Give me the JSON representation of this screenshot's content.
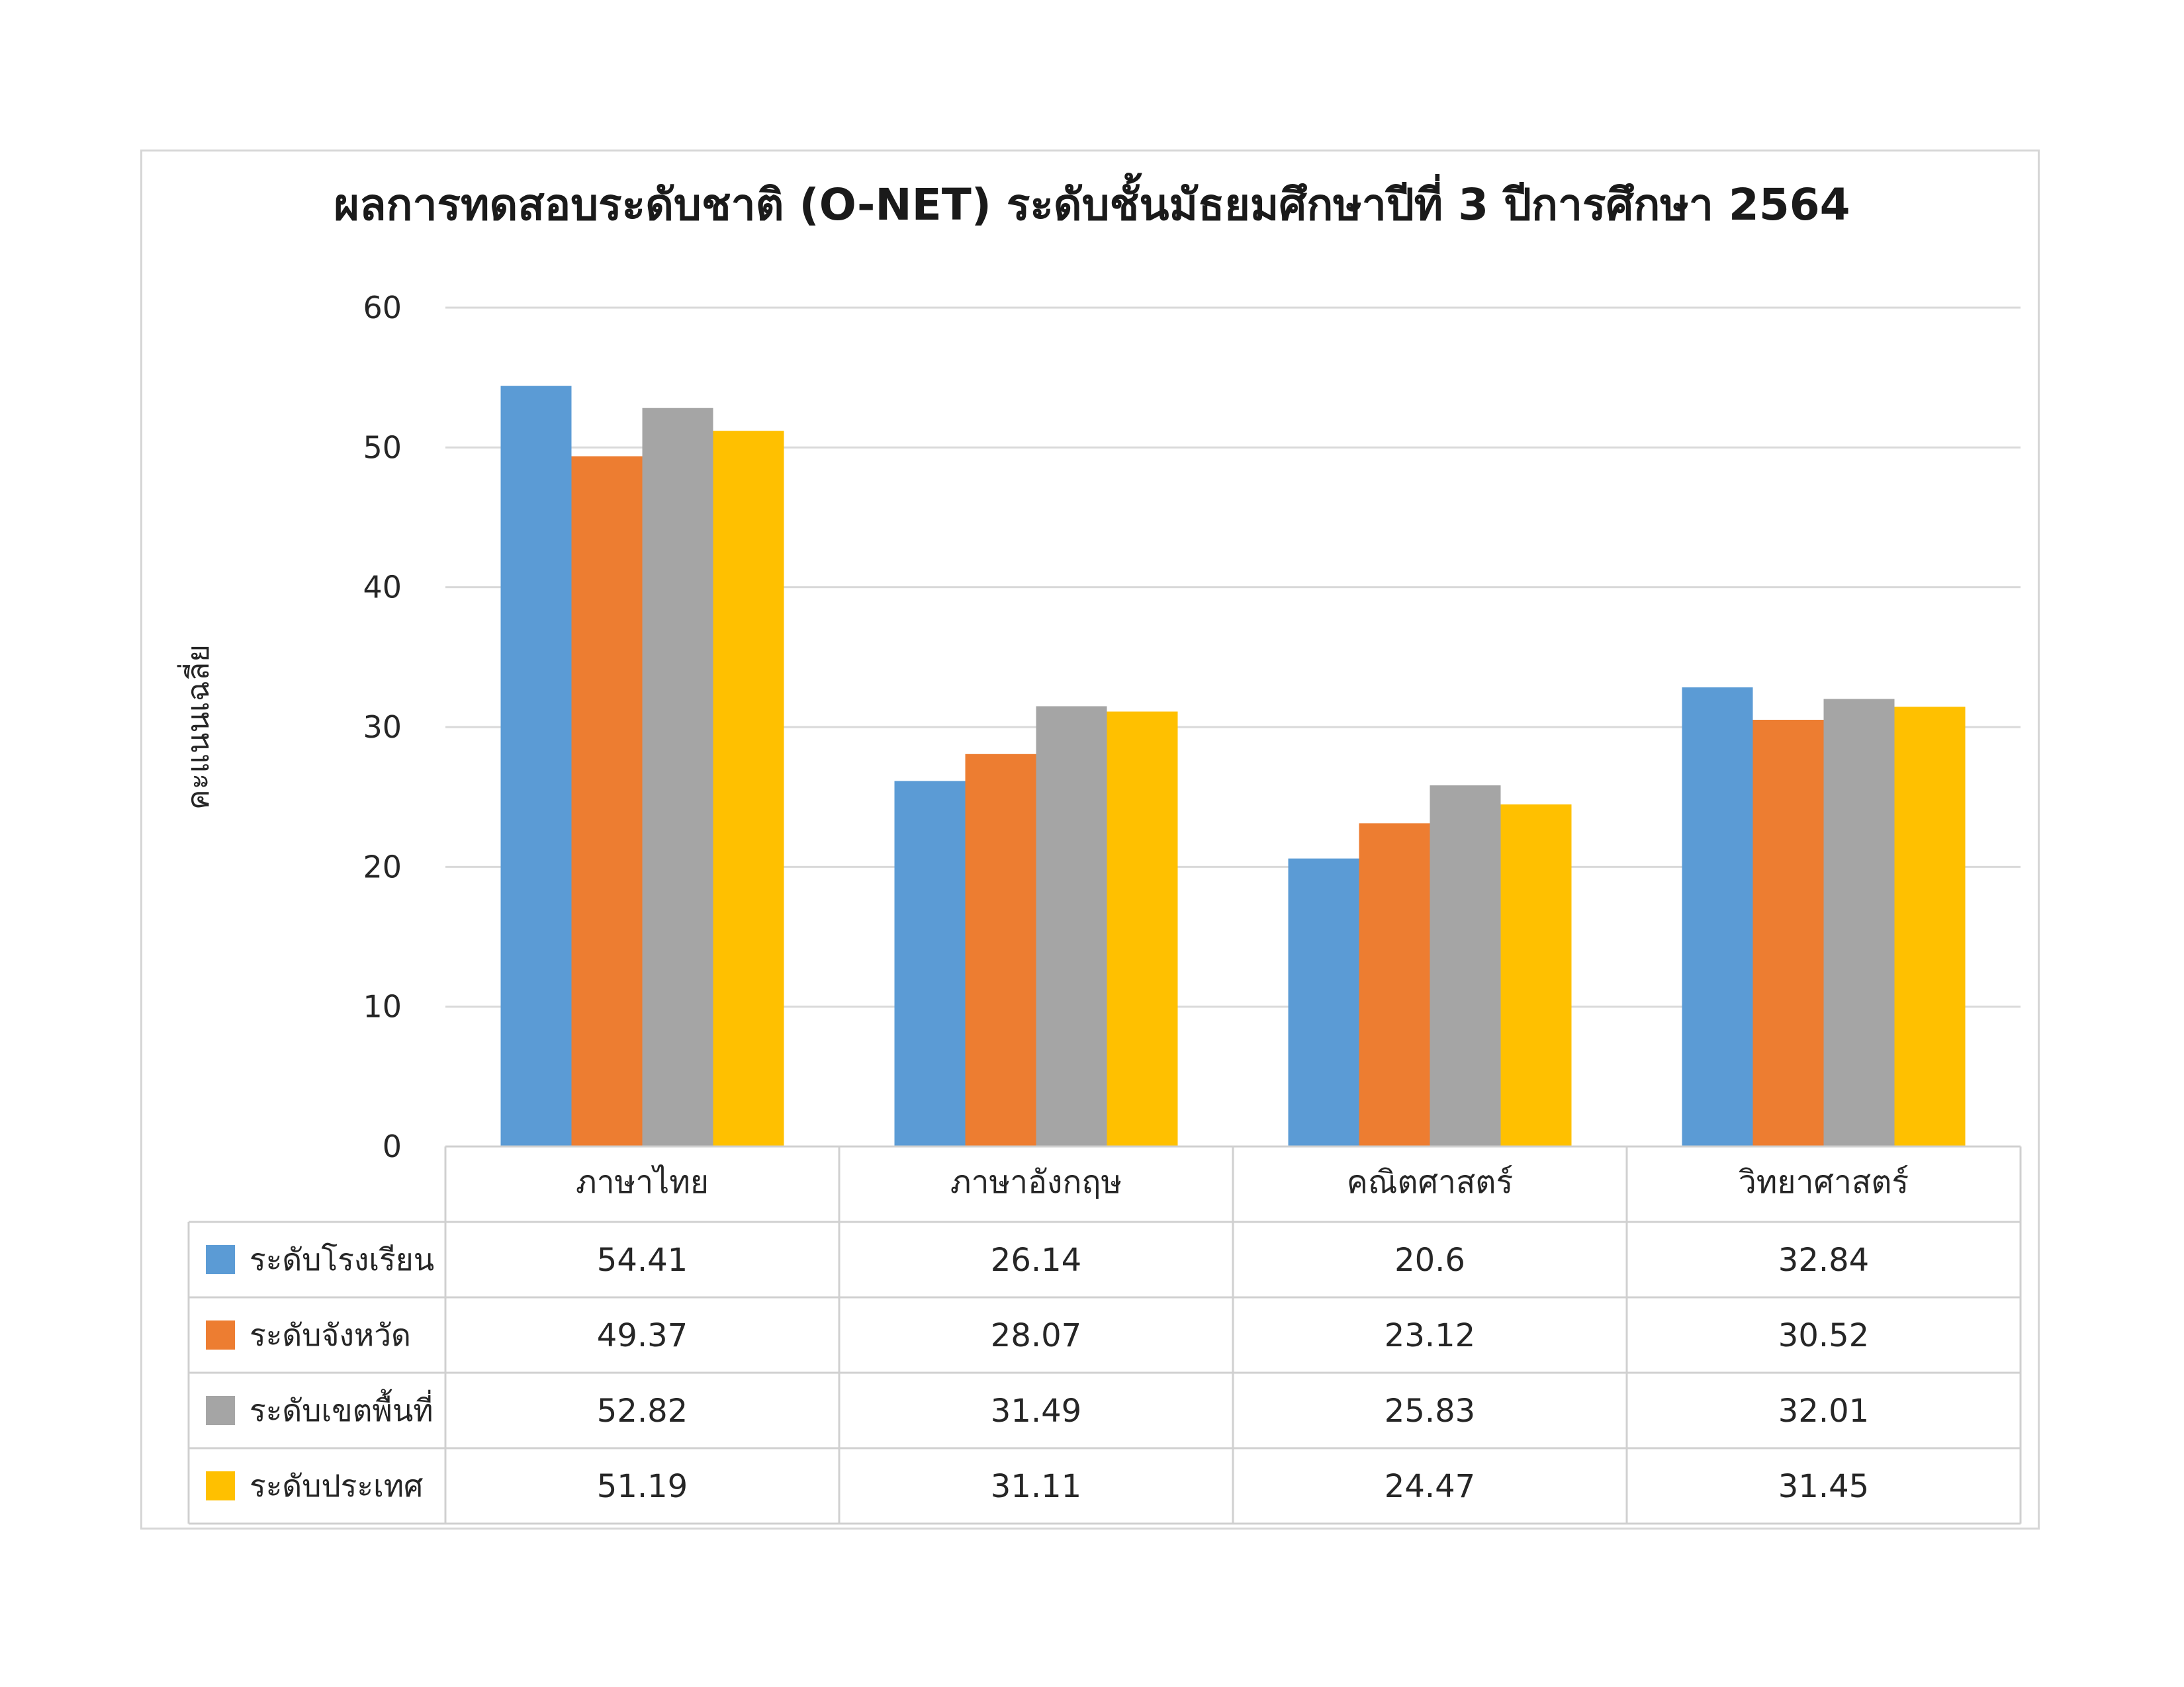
{
  "chart_data": {
    "type": "bar",
    "title": "ผลการทดสอบระดับชาติ (O-NET) ระดับชั้นมัธยมศึกษาปีที่ 3 ปีการศึกษา 2564",
    "xlabel": "",
    "ylabel": "คะแนนเฉลี่ย",
    "ylim": [
      0,
      60
    ],
    "yticks": [
      "0",
      "10",
      "20",
      "30",
      "40",
      "50",
      "60"
    ],
    "grid": true,
    "legend": "data-table-left",
    "categories": [
      "ภาษาไทย",
      "ภาษาอังกฤษ",
      "คณิตศาสตร์",
      "วิทยาศาสตร์"
    ],
    "series": [
      {
        "name": "ระดับโรงเรียน",
        "color": "#5b9bd5",
        "values": [
          54.41,
          26.14,
          20.6,
          32.84
        ],
        "labels": [
          "54.41",
          "26.14",
          "20.6",
          "32.84"
        ]
      },
      {
        "name": "ระดับจังหวัด",
        "color": "#ed7d31",
        "values": [
          49.37,
          28.07,
          23.12,
          30.52
        ],
        "labels": [
          "49.37",
          "28.07",
          "23.12",
          "30.52"
        ]
      },
      {
        "name": "ระดับเขตพื้นที่",
        "color": "#a5a5a5",
        "values": [
          52.82,
          31.49,
          25.83,
          32.01
        ],
        "labels": [
          "52.82",
          "31.49",
          "25.83",
          "32.01"
        ]
      },
      {
        "name": "ระดับประเทศ",
        "color": "#ffc000",
        "values": [
          51.19,
          31.11,
          24.47,
          31.45
        ],
        "labels": [
          "51.19",
          "31.11",
          "24.47",
          "31.45"
        ]
      }
    ]
  }
}
